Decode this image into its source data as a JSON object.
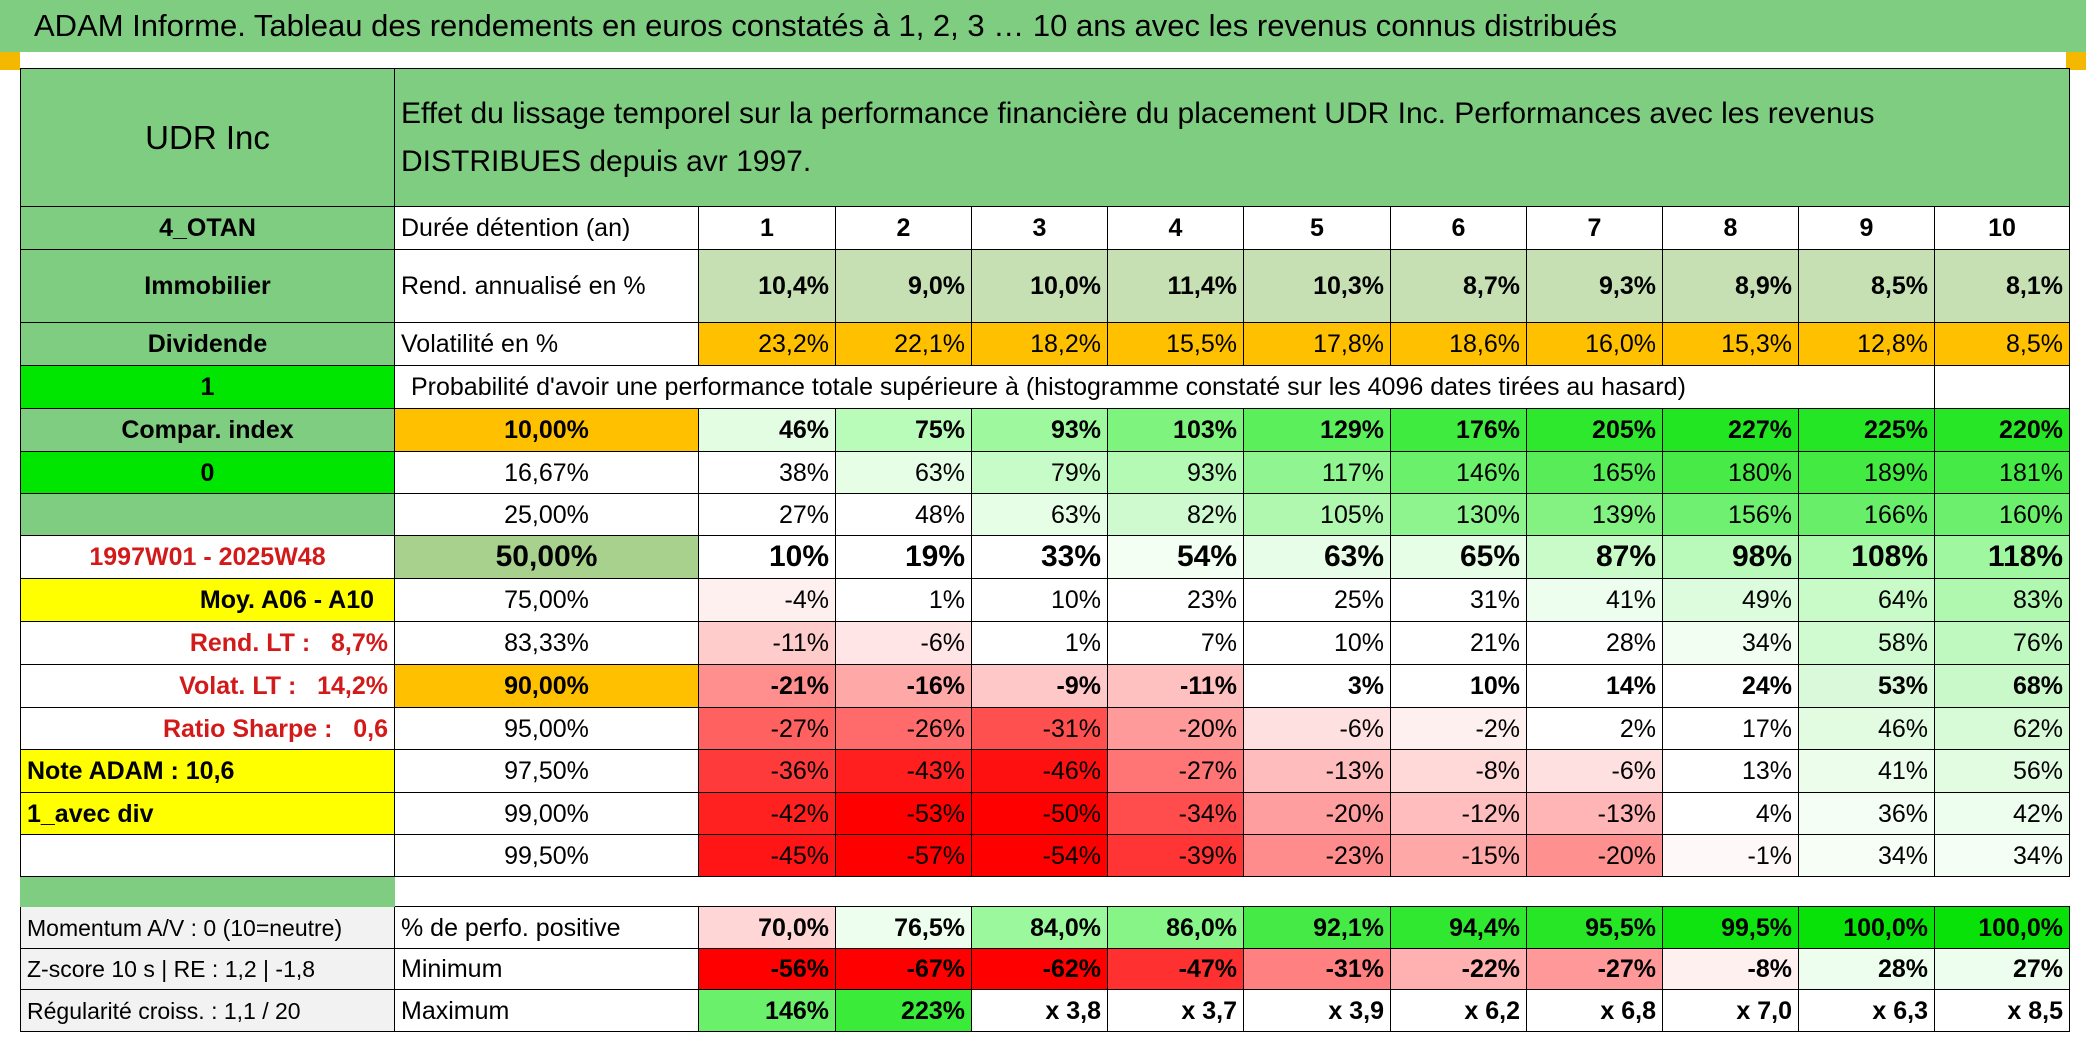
{
  "title": "ADAM Informe. Tableau des rendements en euros constatés à 1, 2, 3 … 10 ans avec les revenus connus distribués",
  "side": {
    "name": "UDR Inc",
    "code": "4_OTAN",
    "sector": "Immobilier",
    "type": "Dividende",
    "sel1": "1",
    "compar": "Compar. index",
    "sel0": "0",
    "period": "1997W01 - 2025W48",
    "moy": "Moy. A06 - A10",
    "rend_lt": "Rend. LT :   8,7%",
    "volat_lt": "Volat. LT :   14,2%",
    "sharpe": "Ratio Sharpe :   0,6",
    "note": "Note ADAM : 10,6",
    "avec_div": "1_avec div",
    "momentum": "Momentum A/V : 0 (10=neutre)",
    "zscore": "Z-score 10 s | RE : 1,2 | -1,8",
    "regularite": "Régularité croiss. : 1,1 / 20"
  },
  "header_text": "Effet du lissage temporel sur la performance financière du placement UDR Inc. Performances avec les revenus DISTRIBUES depuis avr 1997.",
  "duree_label": "Durée détention (an)",
  "years": [
    "1",
    "2",
    "3",
    "4",
    "5",
    "6",
    "7",
    "8",
    "9",
    "10"
  ],
  "rend_label": "Rend. annualisé en %",
  "rend": [
    "10,4%",
    "9,0%",
    "10,0%",
    "11,4%",
    "10,3%",
    "8,7%",
    "9,3%",
    "8,9%",
    "8,5%",
    "8,1%"
  ],
  "vol_label": "Volatilité en %",
  "vol": [
    "23,2%",
    "22,1%",
    "18,2%",
    "15,5%",
    "17,8%",
    "18,6%",
    "16,0%",
    "15,3%",
    "12,8%",
    "8,5%"
  ],
  "prob_text": "Probabilité d'avoir une performance totale supérieure à (histogramme constaté sur les 4096 dates tirées au hasard)",
  "pct_rows": [
    {
      "label": "10,00%",
      "vals": [
        "46%",
        "75%",
        "93%",
        "103%",
        "129%",
        "176%",
        "205%",
        "227%",
        "225%",
        "220%"
      ]
    },
    {
      "label": "16,67%",
      "vals": [
        "38%",
        "63%",
        "79%",
        "93%",
        "117%",
        "146%",
        "165%",
        "180%",
        "189%",
        "181%"
      ]
    },
    {
      "label": "25,00%",
      "vals": [
        "27%",
        "48%",
        "63%",
        "82%",
        "105%",
        "130%",
        "139%",
        "156%",
        "166%",
        "160%"
      ]
    },
    {
      "label": "50,00%",
      "vals": [
        "10%",
        "19%",
        "33%",
        "54%",
        "63%",
        "65%",
        "87%",
        "98%",
        "108%",
        "118%"
      ]
    },
    {
      "label": "75,00%",
      "vals": [
        "-4%",
        "1%",
        "10%",
        "23%",
        "25%",
        "31%",
        "41%",
        "49%",
        "64%",
        "83%"
      ]
    },
    {
      "label": "83,33%",
      "vals": [
        "-11%",
        "-6%",
        "1%",
        "7%",
        "10%",
        "21%",
        "28%",
        "34%",
        "58%",
        "76%"
      ]
    },
    {
      "label": "90,00%",
      "vals": [
        "-21%",
        "-16%",
        "-9%",
        "-11%",
        "3%",
        "10%",
        "14%",
        "24%",
        "53%",
        "68%"
      ]
    },
    {
      "label": "95,00%",
      "vals": [
        "-27%",
        "-26%",
        "-31%",
        "-20%",
        "-6%",
        "-2%",
        "2%",
        "17%",
        "46%",
        "62%"
      ]
    },
    {
      "label": "97,50%",
      "vals": [
        "-36%",
        "-43%",
        "-46%",
        "-27%",
        "-13%",
        "-8%",
        "-6%",
        "13%",
        "41%",
        "56%"
      ]
    },
    {
      "label": "99,00%",
      "vals": [
        "-42%",
        "-53%",
        "-50%",
        "-34%",
        "-20%",
        "-12%",
        "-13%",
        "4%",
        "36%",
        "42%"
      ]
    },
    {
      "label": "99,50%",
      "vals": [
        "-45%",
        "-57%",
        "-54%",
        "-39%",
        "-23%",
        "-15%",
        "-20%",
        "-1%",
        "34%",
        "34%"
      ]
    }
  ],
  "pos_label": "% de perfo. positive",
  "pos": [
    "70,0%",
    "76,5%",
    "84,0%",
    "86,0%",
    "92,1%",
    "94,4%",
    "95,5%",
    "99,5%",
    "100,0%",
    "100,0%"
  ],
  "min_label": "Minimum",
  "min": [
    "-56%",
    "-67%",
    "-62%",
    "-47%",
    "-31%",
    "-22%",
    "-27%",
    "-8%",
    "28%",
    "27%"
  ],
  "max_label": "Maximum",
  "max": [
    "146%",
    "223%",
    "x 3,8",
    "x 3,7",
    "x 3,9",
    "x 6,2",
    "x 6,8",
    "x 7,0",
    "x 6,3",
    "x 8,5"
  ],
  "colors": {
    "header_green": "#7fcd80",
    "highlight_yellow": "#ffff00",
    "selector_green": "#00e600",
    "orange": "#ffc000",
    "rend_green": "#c6e0b4",
    "median_green": "#a9d18e",
    "label_red": "#d21a1a"
  },
  "bg": {
    "r0": [
      "#e2fde2",
      "#b9fbb9",
      "#9ef89e",
      "#7ef37e",
      "#5cef5c",
      "#3feb3f",
      "#2ee82e",
      "#22e622",
      "#24e624",
      "#26e626"
    ],
    "r1": [
      "#ffffff",
      "#e6fde6",
      "#c7fbc7",
      "#b4f9b4",
      "#90f590",
      "#6af06a",
      "#58ed58",
      "#48ea48",
      "#42ea42",
      "#46ea46"
    ],
    "r2": [
      "#ffffff",
      "#ffffff",
      "#e6fde6",
      "#cffacf",
      "#b0f8b0",
      "#8ef48e",
      "#83f283",
      "#70f070",
      "#68ee68",
      "#6cef6c"
    ],
    "r3": [
      "#ffffff",
      "#ffffff",
      "#ffffff",
      "#f4fff4",
      "#e8fde8",
      "#e6fde6",
      "#c9fbc9",
      "#b9f9b9",
      "#aaf8aa",
      "#9ff79f"
    ],
    "r4": [
      "#fff0f0",
      "#ffffff",
      "#ffffff",
      "#ffffff",
      "#ffffff",
      "#ffffff",
      "#eefeee",
      "#ddfcdd",
      "#c8fbc8",
      "#b0f8b0"
    ],
    "r5": [
      "#ffcccc",
      "#ffe5e5",
      "#ffffff",
      "#ffffff",
      "#ffffff",
      "#ffffff",
      "#ffffff",
      "#f2fef2",
      "#d0fbd0",
      "#c0f9c0"
    ],
    "r6": [
      "#ff8f8f",
      "#ffa8a8",
      "#ffc8c8",
      "#ffc0c0",
      "#ffffff",
      "#ffffff",
      "#ffffff",
      "#ffffff",
      "#daf9da",
      "#c9f9c9"
    ],
    "r7": [
      "#ff6060",
      "#ff6a6a",
      "#ff5050",
      "#ff9a9a",
      "#ffe0e0",
      "#fff0f0",
      "#ffffff",
      "#ffffff",
      "#e2fce2",
      "#d6fbd6"
    ],
    "r8": [
      "#ff3a3a",
      "#ff1f1f",
      "#ff1010",
      "#ff7575",
      "#ffbcbc",
      "#ffd8d8",
      "#ffe0e0",
      "#ffffff",
      "#ecfdec",
      "#e2fce2"
    ],
    "r9": [
      "#ff2020",
      "#ff0000",
      "#ff0000",
      "#ff4c4c",
      "#ff9e9e",
      "#ffbdbd",
      "#ffb5b5",
      "#ffffff",
      "#f4fef4",
      "#eefeee"
    ],
    "r10": [
      "#ff1515",
      "#ff0000",
      "#ff0000",
      "#ff3535",
      "#ff8c8c",
      "#ffa8a8",
      "#ff9090",
      "#fff8f8",
      "#f6fef6",
      "#f4fef4"
    ],
    "pos": [
      "#ffd6d6",
      "#eefeee",
      "#9cf89c",
      "#86f486",
      "#46ea46",
      "#30e830",
      "#26e626",
      "#10e410",
      "#08e208",
      "#08e208"
    ],
    "min": [
      "#ff0000",
      "#ff0000",
      "#ff0000",
      "#ff3030",
      "#ff8080",
      "#ffb0b0",
      "#ff9999",
      "#fff0f0",
      "#eefeee",
      "#eefeee"
    ],
    "max": [
      "#6af06a",
      "#3aeb3a",
      "#ffffff",
      "#ffffff",
      "#ffffff",
      "#ffffff",
      "#ffffff",
      "#ffffff",
      "#ffffff",
      "#ffffff"
    ]
  }
}
